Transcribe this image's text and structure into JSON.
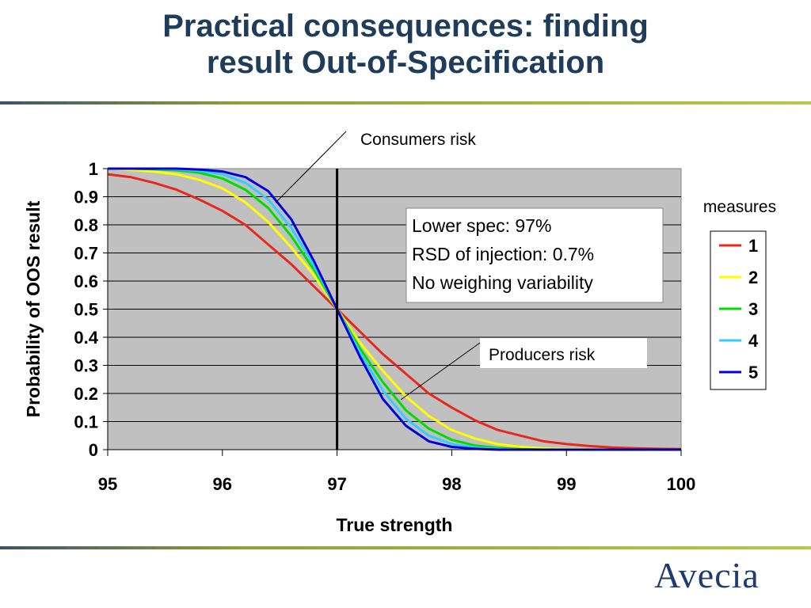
{
  "slide": {
    "title_line1": "Practical consequences: finding",
    "title_line2": "result Out-of-Specification",
    "logo_text": "Avecia"
  },
  "colors": {
    "title": "#1f3d5a",
    "plot_bg": "#c0c0c0",
    "rule": "#8ea13a",
    "logo": "#1f3a6e"
  },
  "chart_data": {
    "type": "line",
    "title": "",
    "xlabel": "True strength",
    "ylabel": "Probability of OOS result",
    "xlim": [
      95,
      100
    ],
    "ylim": [
      0,
      1
    ],
    "xticks": [
      "95",
      "96",
      "97",
      "98",
      "99",
      "100"
    ],
    "yticks": [
      "0",
      "0.1",
      "0.2",
      "0.3",
      "0.4",
      "0.5",
      "0.6",
      "0.7",
      "0.8",
      "0.9",
      "1"
    ],
    "grid": true,
    "legend_title": "measures",
    "legend_position": "right",
    "spec_line_x": 97,
    "x": [
      95.0,
      95.2,
      95.4,
      95.6,
      95.8,
      96.0,
      96.2,
      96.4,
      96.6,
      96.8,
      97.0,
      97.2,
      97.4,
      97.6,
      97.8,
      98.0,
      98.2,
      98.4,
      98.6,
      98.8,
      99.0,
      99.2,
      99.4,
      99.6,
      99.8,
      100.0
    ],
    "series": [
      {
        "name": "1",
        "color": "#e8281e",
        "values": [
          0.98,
          0.97,
          0.95,
          0.925,
          0.89,
          0.85,
          0.8,
          0.73,
          0.66,
          0.58,
          0.5,
          0.42,
          0.34,
          0.27,
          0.2,
          0.15,
          0.105,
          0.07,
          0.05,
          0.03,
          0.02,
          0.013,
          0.008,
          0.005,
          0.003,
          0.002
        ]
      },
      {
        "name": "2",
        "color": "#ffff00",
        "values": [
          1.0,
          0.995,
          0.99,
          0.98,
          0.96,
          0.93,
          0.88,
          0.81,
          0.72,
          0.62,
          0.5,
          0.38,
          0.28,
          0.19,
          0.12,
          0.07,
          0.04,
          0.02,
          0.01,
          0.005,
          0.002,
          0.001,
          0.0,
          0.0,
          0.0,
          0.0
        ]
      },
      {
        "name": "3",
        "color": "#00dd00",
        "values": [
          1.0,
          1.0,
          0.998,
          0.994,
          0.985,
          0.965,
          0.925,
          0.86,
          0.76,
          0.64,
          0.5,
          0.36,
          0.24,
          0.14,
          0.075,
          0.035,
          0.015,
          0.006,
          0.002,
          0.0,
          0.0,
          0.0,
          0.0,
          0.0,
          0.0,
          0.0
        ]
      },
      {
        "name": "4",
        "color": "#33ccff",
        "values": [
          1.0,
          1.0,
          1.0,
          0.998,
          0.992,
          0.98,
          0.95,
          0.89,
          0.79,
          0.655,
          0.5,
          0.345,
          0.21,
          0.11,
          0.05,
          0.02,
          0.008,
          0.002,
          0.0,
          0.0,
          0.0,
          0.0,
          0.0,
          0.0,
          0.0,
          0.0
        ]
      },
      {
        "name": "5",
        "color": "#0000dd",
        "values": [
          1.0,
          1.0,
          1.0,
          1.0,
          0.997,
          0.99,
          0.97,
          0.92,
          0.82,
          0.67,
          0.5,
          0.33,
          0.18,
          0.085,
          0.03,
          0.01,
          0.003,
          0.0,
          0.0,
          0.0,
          0.0,
          0.0,
          0.0,
          0.0,
          0.0,
          0.0
        ]
      }
    ],
    "annotations": {
      "spec_box_lines": [
        "Lower spec: 97%",
        "RSD of injection: 0.7%",
        "No weighing variability"
      ],
      "consumers_risk": "Consumers risk",
      "producers_risk": "Producers risk"
    }
  }
}
